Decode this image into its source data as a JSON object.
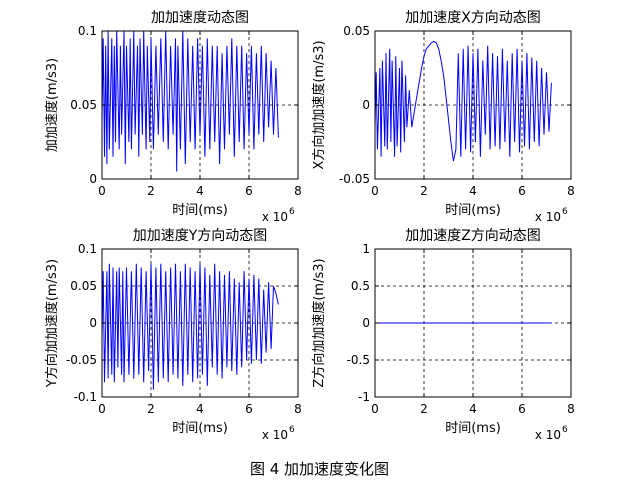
{
  "caption": "图 4  加加速度变化图",
  "chart_data": [
    {
      "type": "line",
      "title": "加加速度动态图",
      "xlabel": "时间(ms)",
      "ylabel": "加加速度(m/s3)",
      "x_exponent": "x 10",
      "x_exponent_power": "6",
      "xlim": [
        0,
        8
      ],
      "ylim": [
        0,
        0.1
      ],
      "xticks": [
        0,
        2,
        4,
        6,
        8
      ],
      "xtick_labels": [
        "0",
        "2",
        "4",
        "6",
        "8"
      ],
      "yticks": [
        0,
        0.05,
        0.1
      ],
      "ytick_labels": [
        "0",
        "0.05",
        "0.1"
      ],
      "grid": true,
      "line_color": "#0000ff",
      "series": [
        {
          "x": [
            0.0,
            0.05,
            0.1,
            0.15,
            0.2,
            0.25,
            0.3,
            0.4,
            0.45,
            0.5,
            0.55,
            0.6,
            0.7,
            0.75,
            0.8,
            0.9,
            0.95,
            1.0,
            1.1,
            1.15,
            1.2,
            1.3,
            1.35,
            1.45,
            1.5,
            1.55,
            1.65,
            1.7,
            1.8,
            1.85,
            1.95,
            2.0,
            2.1,
            2.2,
            2.3,
            2.4,
            2.5,
            2.6,
            2.7,
            2.8,
            2.9,
            3.0,
            3.05,
            3.1,
            3.2,
            3.3,
            3.4,
            3.5,
            3.6,
            3.7,
            3.8,
            3.9,
            4.0,
            4.1,
            4.2,
            4.3,
            4.4,
            4.5,
            4.6,
            4.7,
            4.8,
            4.9,
            5.0,
            5.1,
            5.2,
            5.3,
            5.4,
            5.5,
            5.6,
            5.7,
            5.8,
            5.9,
            6.0,
            6.1,
            6.2,
            6.3,
            6.4,
            6.5,
            6.6,
            6.7,
            6.8,
            6.9,
            7.0,
            7.1,
            7.2
          ],
          "y": [
            0.04,
            0.095,
            0.015,
            0.09,
            0.01,
            0.1,
            0.02,
            0.095,
            0.015,
            0.09,
            0.025,
            0.1,
            0.02,
            0.09,
            0.03,
            0.1,
            0.01,
            0.09,
            0.025,
            0.095,
            0.02,
            0.1,
            0.03,
            0.09,
            0.015,
            0.095,
            0.03,
            0.1,
            0.02,
            0.09,
            0.025,
            0.095,
            0.02,
            0.09,
            0.03,
            0.095,
            0.025,
            0.1,
            0.02,
            0.09,
            0.03,
            0.095,
            0.005,
            0.09,
            0.02,
            0.1,
            0.01,
            0.095,
            0.025,
            0.09,
            0.02,
            0.095,
            0.03,
            0.09,
            0.015,
            0.095,
            0.02,
            0.09,
            0.025,
            0.09,
            0.01,
            0.085,
            0.02,
            0.09,
            0.03,
            0.095,
            0.015,
            0.09,
            0.025,
            0.09,
            0.02,
            0.085,
            0.03,
            0.09,
            0.02,
            0.085,
            0.03,
            0.09,
            0.025,
            0.085,
            0.035,
            0.08,
            0.03,
            0.075,
            0.028
          ]
        }
      ]
    },
    {
      "type": "line",
      "title": "加加速度X方向动态图",
      "xlabel": "时间(ms)",
      "ylabel": "X方向加加速度(m/s3)",
      "x_exponent": "x 10",
      "x_exponent_power": "6",
      "xlim": [
        0,
        8
      ],
      "ylim": [
        -0.05,
        0.05
      ],
      "xticks": [
        0,
        2,
        4,
        6,
        8
      ],
      "xtick_labels": [
        "0",
        "2",
        "4",
        "6",
        "8"
      ],
      "yticks": [
        -0.05,
        0,
        0.05
      ],
      "ytick_labels": [
        "-0.05",
        "0",
        "0.05"
      ],
      "grid": true,
      "line_color": "#0000ff",
      "series": [
        {
          "x": [
            0.0,
            0.05,
            0.1,
            0.2,
            0.25,
            0.3,
            0.4,
            0.45,
            0.5,
            0.6,
            0.65,
            0.7,
            0.8,
            0.85,
            0.9,
            1.0,
            1.05,
            1.1,
            1.2,
            1.25,
            1.3,
            1.4,
            1.5,
            1.6,
            1.7,
            1.8,
            1.9,
            2.0,
            2.1,
            2.2,
            2.3,
            2.4,
            2.5,
            2.6,
            2.7,
            2.8,
            2.9,
            3.0,
            3.1,
            3.2,
            3.3,
            3.4,
            3.5,
            3.6,
            3.7,
            3.8,
            3.9,
            4.0,
            4.1,
            4.2,
            4.3,
            4.4,
            4.5,
            4.6,
            4.7,
            4.8,
            4.9,
            5.0,
            5.1,
            5.2,
            5.3,
            5.4,
            5.5,
            5.6,
            5.7,
            5.8,
            5.9,
            6.0,
            6.1,
            6.2,
            6.3,
            6.4,
            6.5,
            6.6,
            6.7,
            6.8,
            6.9,
            7.0,
            7.1,
            7.2
          ],
          "y": [
            -0.015,
            0.022,
            -0.03,
            0.025,
            -0.035,
            0.03,
            -0.028,
            0.035,
            -0.03,
            0.038,
            -0.025,
            0.03,
            -0.035,
            0.033,
            -0.028,
            0.025,
            -0.032,
            0.03,
            -0.025,
            0.02,
            -0.015,
            0.01,
            -0.015,
            -0.005,
            0.005,
            0.015,
            0.025,
            0.033,
            0.038,
            0.04,
            0.042,
            0.043,
            0.042,
            0.038,
            0.03,
            0.02,
            0.005,
            -0.01,
            -0.025,
            -0.038,
            -0.03,
            0.035,
            -0.035,
            0.038,
            -0.03,
            0.04,
            -0.032,
            0.035,
            -0.025,
            0.038,
            -0.035,
            0.03,
            -0.02,
            0.04,
            -0.03,
            0.035,
            -0.028,
            0.033,
            -0.03,
            0.038,
            -0.025,
            0.03,
            -0.035,
            0.035,
            -0.025,
            0.038,
            -0.032,
            0.03,
            -0.028,
            0.035,
            -0.03,
            0.032,
            -0.025,
            0.03,
            -0.028,
            0.025,
            -0.02,
            0.022,
            -0.018,
            0.015
          ]
        }
      ]
    },
    {
      "type": "line",
      "title": "加加速度Y方向动态图",
      "xlabel": "时间(ms)",
      "ylabel": "Y方向加加速度(m/s3)",
      "x_exponent": "x 10",
      "x_exponent_power": "6",
      "xlim": [
        0,
        8
      ],
      "ylim": [
        -0.1,
        0.1
      ],
      "xticks": [
        0,
        2,
        4,
        6,
        8
      ],
      "xtick_labels": [
        "0",
        "2",
        "4",
        "6",
        "8"
      ],
      "yticks": [
        -0.1,
        -0.05,
        0,
        0.05,
        0.1
      ],
      "ytick_labels": [
        "-0.1",
        "-0.05",
        "0",
        "0.05",
        "0.1"
      ],
      "grid": true,
      "line_color": "#0000ff",
      "series": [
        {
          "x": [
            0.0,
            0.05,
            0.1,
            0.2,
            0.25,
            0.3,
            0.4,
            0.45,
            0.5,
            0.6,
            0.65,
            0.7,
            0.8,
            0.85,
            0.9,
            1.0,
            1.1,
            1.2,
            1.3,
            1.4,
            1.5,
            1.6,
            1.7,
            1.8,
            1.9,
            2.0,
            2.1,
            2.2,
            2.3,
            2.4,
            2.5,
            2.6,
            2.7,
            2.8,
            2.9,
            3.0,
            3.1,
            3.2,
            3.3,
            3.4,
            3.5,
            3.6,
            3.7,
            3.8,
            3.9,
            4.0,
            4.1,
            4.2,
            4.3,
            4.4,
            4.5,
            4.6,
            4.7,
            4.8,
            4.9,
            5.0,
            5.1,
            5.2,
            5.3,
            5.4,
            5.5,
            5.6,
            5.7,
            5.8,
            5.9,
            6.0,
            6.1,
            6.2,
            6.3,
            6.4,
            6.5,
            6.6,
            6.7,
            6.8,
            6.9,
            7.0,
            7.1,
            7.2
          ],
          "y": [
            -0.02,
            0.07,
            -0.08,
            0.07,
            -0.075,
            0.08,
            -0.07,
            0.075,
            -0.08,
            0.07,
            -0.06,
            0.075,
            -0.07,
            0.07,
            -0.08,
            0.075,
            -0.07,
            0.07,
            -0.075,
            0.08,
            -0.07,
            0.075,
            -0.08,
            0.07,
            -0.065,
            0.08,
            -0.09,
            0.075,
            -0.08,
            0.08,
            -0.075,
            0.07,
            -0.08,
            0.075,
            -0.07,
            0.08,
            -0.075,
            0.07,
            -0.085,
            0.08,
            -0.07,
            0.075,
            -0.08,
            0.07,
            -0.075,
            0.08,
            -0.07,
            0.075,
            -0.085,
            0.065,
            -0.06,
            0.08,
            -0.07,
            0.07,
            -0.075,
            0.065,
            -0.06,
            0.07,
            -0.065,
            0.06,
            -0.07,
            0.055,
            -0.06,
            0.07,
            -0.05,
            0.06,
            -0.055,
            0.065,
            -0.05,
            0.06,
            -0.055,
            0.045,
            -0.04,
            0.055,
            -0.035,
            0.05,
            0.04,
            0.025
          ]
        }
      ]
    },
    {
      "type": "line",
      "title": "加加速度Z方向动态图",
      "xlabel": "时间(ms)",
      "ylabel": "Z方向加加速度(m/s3)",
      "x_exponent": "x 10",
      "x_exponent_power": "6",
      "xlim": [
        0,
        8
      ],
      "ylim": [
        -1,
        1
      ],
      "xticks": [
        0,
        2,
        4,
        6,
        8
      ],
      "xtick_labels": [
        "0",
        "2",
        "4",
        "6",
        "8"
      ],
      "yticks": [
        -1,
        -0.5,
        0,
        0.5,
        1
      ],
      "ytick_labels": [
        "-1",
        "-0.5",
        "0",
        "0.5",
        "1"
      ],
      "grid": true,
      "line_color": "#0000ff",
      "series": [
        {
          "x": [
            0,
            7.2
          ],
          "y": [
            0,
            0
          ]
        }
      ]
    }
  ]
}
